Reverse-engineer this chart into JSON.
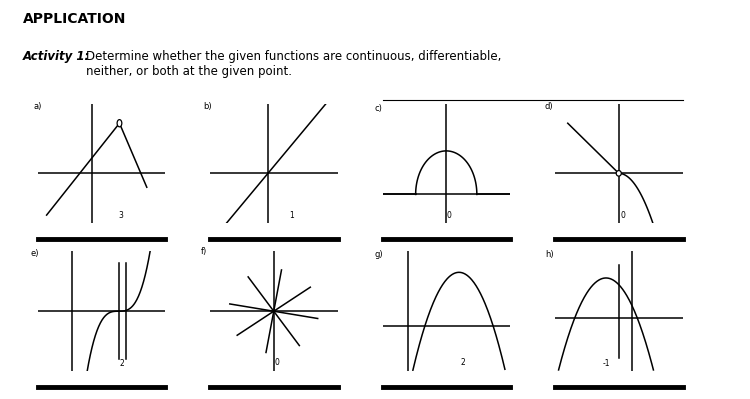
{
  "title": "APPLICATION",
  "activity_bold": "Activity 1:",
  "activity_text": "Determine whether the given functions are continuous, differentiable,\nneither, or both at the given point.",
  "bg_color": "#ffffff",
  "text_color": "#000000",
  "graphs": [
    {
      "label": "a)",
      "point_label": "3"
    },
    {
      "label": "b)",
      "point_label": "1"
    },
    {
      "label": "c)",
      "point_label": "0"
    },
    {
      "label": "d)",
      "point_label": "0"
    },
    {
      "label": "e)",
      "point_label": "2"
    },
    {
      "label": "f)",
      "point_label": "0"
    },
    {
      "label": "g)",
      "point_label": "2"
    },
    {
      "label": "h)",
      "point_label": "-1"
    }
  ],
  "lw": 1.1,
  "label_fontsize": 6,
  "tick_fontsize": 5.5
}
